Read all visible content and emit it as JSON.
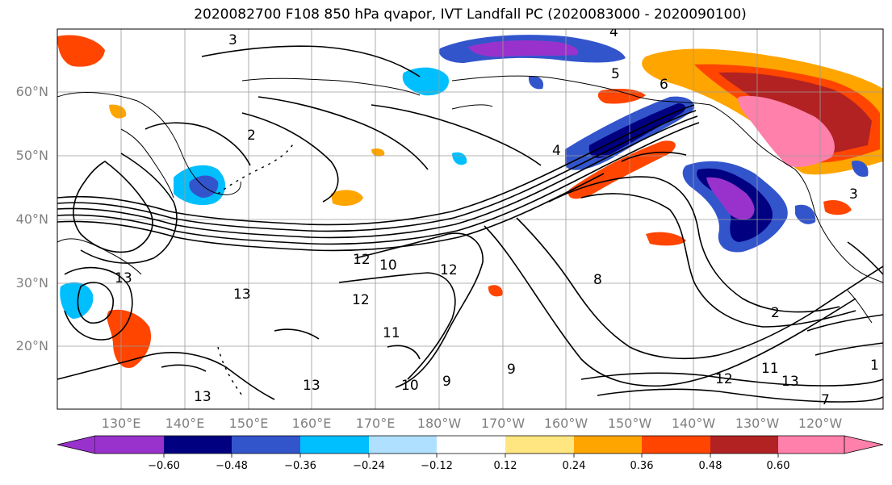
{
  "title": "2020082700 F108 850 hPa qvapor, IVT Landfall PC (2020083000 - 2020090100)",
  "map": {
    "lat_labels": [
      "60°N",
      "50°N",
      "40°N",
      "30°N",
      "20°N"
    ],
    "lon_labels": [
      "130°E",
      "140°E",
      "150°E",
      "160°E",
      "170°E",
      "180°W",
      "170°W",
      "160°W",
      "150°W",
      "140°W",
      "130°W",
      "120°W"
    ],
    "contour_labels": [
      "3",
      "2",
      "4",
      "5",
      "6",
      "12",
      "10",
      "12",
      "8",
      "12",
      "11",
      "13",
      "13",
      "13",
      "9",
      "10",
      "9",
      "13",
      "12",
      "11",
      "13",
      "1",
      "7",
      "2",
      "3",
      "4"
    ],
    "colors": {
      "purple": "#9932cc",
      "navy": "#000080",
      "royal_blue": "#3355cc",
      "deep_sky": "#00bfff",
      "light_blue": "#b0e0ff",
      "white": "#ffffff",
      "light_yellow": "#ffe680",
      "orange": "#ffa500",
      "orange_red": "#ff4500",
      "firebrick": "#b22222",
      "pink": "#ff80aa"
    }
  },
  "colorbar": {
    "ticks": [
      "−0.60",
      "−0.48",
      "−0.36",
      "−0.24",
      "−0.12",
      "0.12",
      "0.24",
      "0.36",
      "0.48",
      "0.60"
    ],
    "segment_colors": [
      "#9932cc",
      "#000080",
      "#3355cc",
      "#00bfff",
      "#b0e0ff",
      "#ffffff",
      "#ffe680",
      "#ffa500",
      "#ff4500",
      "#b22222",
      "#ff80aa"
    ]
  }
}
